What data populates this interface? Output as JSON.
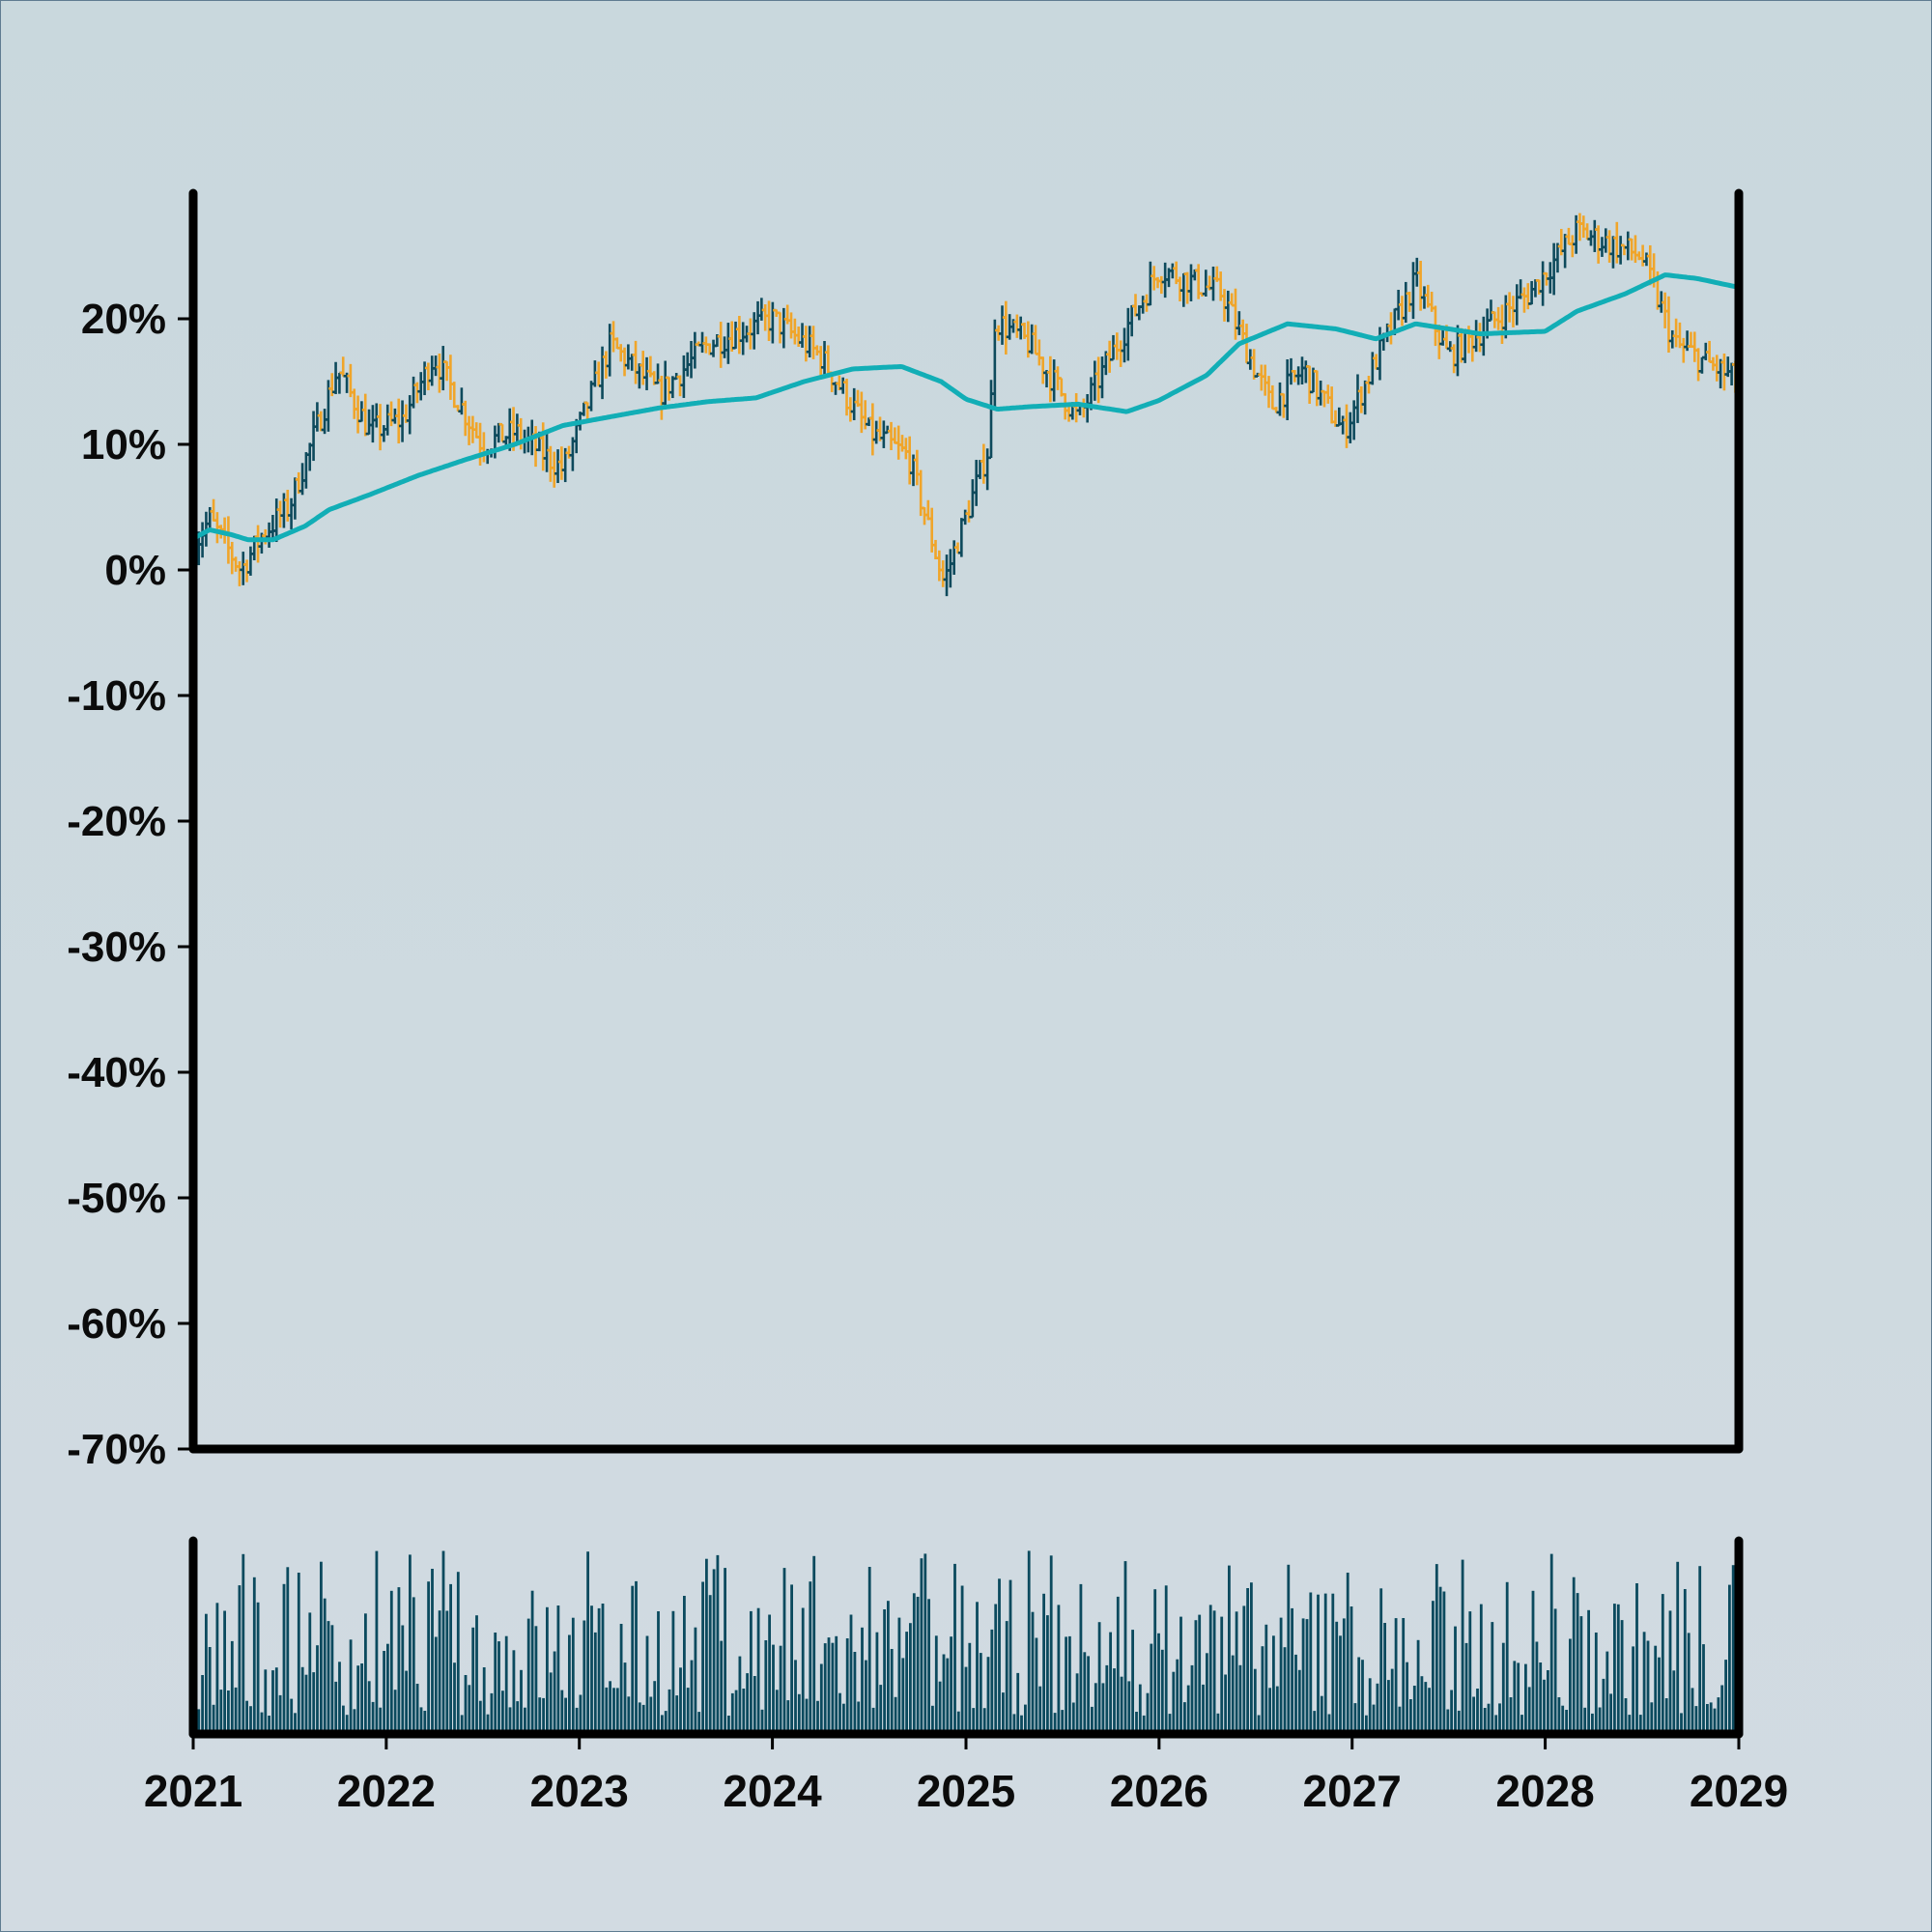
{
  "chart_data": {
    "type": "ohlc",
    "y_axis": {
      "min": -70,
      "max": 30,
      "ticks": [
        20,
        10,
        0,
        -10,
        -20,
        -30,
        -40,
        -50,
        -60,
        -70
      ],
      "tick_labels": [
        "20%",
        "10%",
        "0%",
        "-10%",
        "-20%",
        "-30%",
        "-40%",
        "-50%",
        "-60%",
        "-70%"
      ],
      "unit": "%"
    },
    "x_axis": {
      "start": "2021-01-01",
      "end": "2029-01-01",
      "ticks": [
        "2021",
        "2022",
        "2023",
        "2024",
        "2025",
        "2026",
        "2027",
        "2028",
        "2029"
      ]
    },
    "grid": false,
    "legend": "none",
    "price_series": {
      "frequency": "weekly",
      "anchors": [
        [
          "2021-01-01",
          2
        ],
        [
          "2021-02-01",
          4
        ],
        [
          "2021-04-01",
          0
        ],
        [
          "2021-05-15",
          3
        ],
        [
          "2021-07-01",
          5
        ],
        [
          "2021-10-01",
          16
        ],
        [
          "2021-12-01",
          11
        ],
        [
          "2022-02-01",
          12
        ],
        [
          "2022-04-01",
          17
        ],
        [
          "2022-07-01",
          10
        ],
        [
          "2022-09-01",
          11
        ],
        [
          "2022-12-01",
          8
        ],
        [
          "2023-03-01",
          18
        ],
        [
          "2023-06-01",
          14
        ],
        [
          "2023-09-01",
          18
        ],
        [
          "2024-01-01",
          20
        ],
        [
          "2024-04-01",
          17
        ],
        [
          "2024-07-01",
          11
        ],
        [
          "2024-09-15",
          9
        ],
        [
          "2024-11-20",
          -1
        ],
        [
          "2025-02-15",
          10
        ],
        [
          "2025-02-22",
          20
        ],
        [
          "2025-05-01",
          18
        ],
        [
          "2025-08-01",
          12
        ],
        [
          "2025-10-01",
          17
        ],
        [
          "2026-01-01",
          24
        ],
        [
          "2026-05-01",
          22
        ],
        [
          "2026-08-01",
          13
        ],
        [
          "2026-10-01",
          16
        ],
        [
          "2026-12-15",
          11
        ],
        [
          "2027-03-01",
          18
        ],
        [
          "2027-05-01",
          23
        ],
        [
          "2027-07-01",
          17
        ],
        [
          "2027-09-01",
          19
        ],
        [
          "2027-12-01",
          22
        ],
        [
          "2028-03-01",
          27
        ],
        [
          "2028-07-01",
          25
        ],
        [
          "2028-09-01",
          18
        ],
        [
          "2029-01-01",
          15
        ]
      ]
    },
    "moving_average": {
      "points": [
        [
          "2021-01-01",
          2.5
        ],
        [
          "2021-02-01",
          3.2
        ],
        [
          "2021-03-15",
          2.8
        ],
        [
          "2021-04-15",
          2.4
        ],
        [
          "2021-06-01",
          2.4
        ],
        [
          "2021-08-01",
          3.5
        ],
        [
          "2021-09-15",
          4.8
        ],
        [
          "2021-12-01",
          6.0
        ],
        [
          "2022-03-01",
          7.5
        ],
        [
          "2022-06-01",
          8.8
        ],
        [
          "2022-09-01",
          10.0
        ],
        [
          "2022-12-01",
          11.5
        ],
        [
          "2023-03-01",
          12.2
        ],
        [
          "2023-06-01",
          12.9
        ],
        [
          "2023-09-01",
          13.4
        ],
        [
          "2023-12-01",
          13.7
        ],
        [
          "2024-03-01",
          15.0
        ],
        [
          "2024-06-01",
          16.0
        ],
        [
          "2024-09-01",
          16.2
        ],
        [
          "2024-11-15",
          15.0
        ],
        [
          "2025-01-01",
          13.6
        ],
        [
          "2025-03-01",
          12.8
        ],
        [
          "2025-05-01",
          13.0
        ],
        [
          "2025-08-01",
          13.2
        ],
        [
          "2025-11-01",
          12.6
        ],
        [
          "2026-01-01",
          13.5
        ],
        [
          "2026-04-01",
          15.5
        ],
        [
          "2026-06-01",
          18.0
        ],
        [
          "2026-09-01",
          19.6
        ],
        [
          "2026-12-01",
          19.2
        ],
        [
          "2027-02-15",
          18.4
        ],
        [
          "2027-05-01",
          19.6
        ],
        [
          "2027-09-01",
          18.8
        ],
        [
          "2028-01-01",
          19.0
        ],
        [
          "2028-03-01",
          20.6
        ],
        [
          "2028-06-01",
          22.0
        ],
        [
          "2028-08-15",
          23.5
        ],
        [
          "2028-10-15",
          23.2
        ],
        [
          "2029-01-01",
          22.5
        ]
      ]
    },
    "volume_series": {
      "frequency": "weekly",
      "relative_scale": true
    },
    "colors": {
      "background": "#cfdadf",
      "axis": "#000000",
      "up_bar": "#0e4a5c",
      "down_bar": "#f0a52a",
      "moving_average": "#12aeb6",
      "volume": "#0b4a5e"
    }
  }
}
